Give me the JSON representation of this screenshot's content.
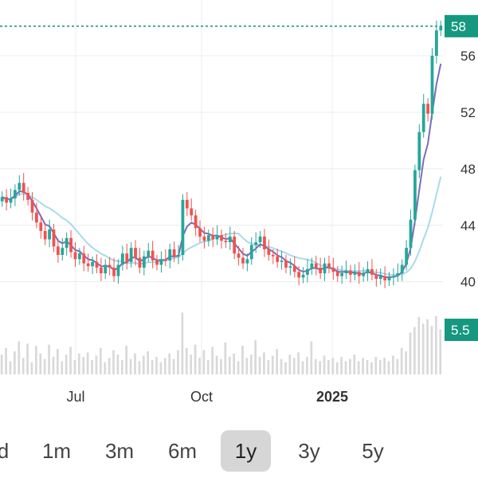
{
  "chart_data": {
    "type": "candlestick",
    "ylim": [
      37.5,
      59.5
    ],
    "y_ticks": [
      {
        "value": 56,
        "label": "56"
      },
      {
        "value": 52,
        "label": "52"
      },
      {
        "value": 48,
        "label": "48"
      },
      {
        "value": 44,
        "label": "44"
      },
      {
        "value": 40,
        "label": "40"
      }
    ],
    "x_labels": [
      {
        "label": "Jul",
        "bold": false
      },
      {
        "label": "Oct",
        "bold": false
      },
      {
        "label": "2025",
        "bold": true
      }
    ],
    "last_price_label": "58",
    "last_price_value": 58.1,
    "volume_label": "5.5",
    "closes": [
      46.0,
      45.6,
      45.9,
      46.5,
      47.0,
      46.3,
      45.8,
      44.9,
      44.2,
      43.6,
      43.0,
      43.7,
      42.5,
      41.9,
      42.4,
      43.1,
      42.1,
      41.6,
      42.0,
      41.3,
      41.1,
      41.4,
      41.0,
      40.6,
      41.2,
      41.0,
      40.4,
      41.2,
      42.0,
      41.4,
      42.4,
      41.7,
      41.0,
      41.8,
      42.2,
      41.5,
      41.2,
      41.6,
      41.5,
      42.3,
      41.8,
      41.9,
      45.8,
      45.2,
      44.7,
      43.8,
      43.2,
      42.9,
      43.3,
      43.0,
      43.3,
      42.9,
      42.8,
      43.2,
      42.0,
      41.7,
      41.3,
      41.6,
      42.6,
      42.8,
      43.2,
      42.3,
      41.9,
      41.8,
      41.4,
      41.5,
      41.0,
      41.1,
      40.7,
      40.3,
      40.5,
      40.9,
      41.3,
      41.0,
      40.6,
      41.3,
      41.0,
      40.7,
      40.4,
      40.6,
      40.8,
      40.5,
      40.7,
      40.4,
      40.6,
      40.9,
      40.5,
      40.2,
      40.4,
      40.1,
      40.3,
      40.4,
      40.6,
      41.2,
      42.4,
      44.4,
      47.9,
      50.6,
      52.6,
      51.9,
      56.0,
      57.8,
      58.1
    ],
    "vol_max_value": 6.5,
    "volumes": [
      1.8,
      2.4,
      1.2,
      2.1,
      3.0,
      1.5,
      2.8,
      1.1,
      2.6,
      1.9,
      1.4,
      2.7,
      1.6,
      2.3,
      1.2,
      1.8,
      2.5,
      1.3,
      1.9,
      1.6,
      2.0,
      1.3,
      1.7,
      2.4,
      1.1,
      1.5,
      2.2,
      1.8,
      1.3,
      2.6,
      1.4,
      1.9,
      1.2,
      1.7,
      2.1,
      1.3,
      1.6,
      1.1,
      1.5,
      1.9,
      1.4,
      2.2,
      5.6,
      2.4,
      1.8,
      2.7,
      1.5,
      2.2,
      1.3,
      2.5,
      1.7,
      1.4,
      2.9,
      1.6,
      1.9,
      1.2,
      2.6,
      1.5,
      1.8,
      3.1,
      1.6,
      2.0,
      1.3,
      1.7,
      2.3,
      1.4,
      1.1,
      1.8,
      1.5,
      2.0,
      1.2,
      1.6,
      3.0,
      1.4,
      1.2,
      1.7,
      1.3,
      1.5,
      1.1,
      1.6,
      1.2,
      1.4,
      1.8,
      1.2,
      1.5,
      1.3,
      1.1,
      1.6,
      1.3,
      1.5,
      1.2,
      1.7,
      1.4,
      2.4,
      2.1,
      3.8,
      4.3,
      5.2,
      4.6,
      5.0,
      4.4,
      5.3,
      4.1
    ]
  },
  "range_selector": {
    "buttons": [
      "d",
      "1m",
      "3m",
      "6m",
      "1y",
      "3y",
      "5y"
    ],
    "active": "1y"
  },
  "colors": {
    "up": "#26a69a",
    "down": "#ef5350",
    "badge": "#169880",
    "ma_short": "#7e6bb8",
    "ma_long": "#a9dbe9",
    "grid": "#ececec",
    "price_line": "#1a8a7e",
    "volume": "#d9d9d9"
  }
}
